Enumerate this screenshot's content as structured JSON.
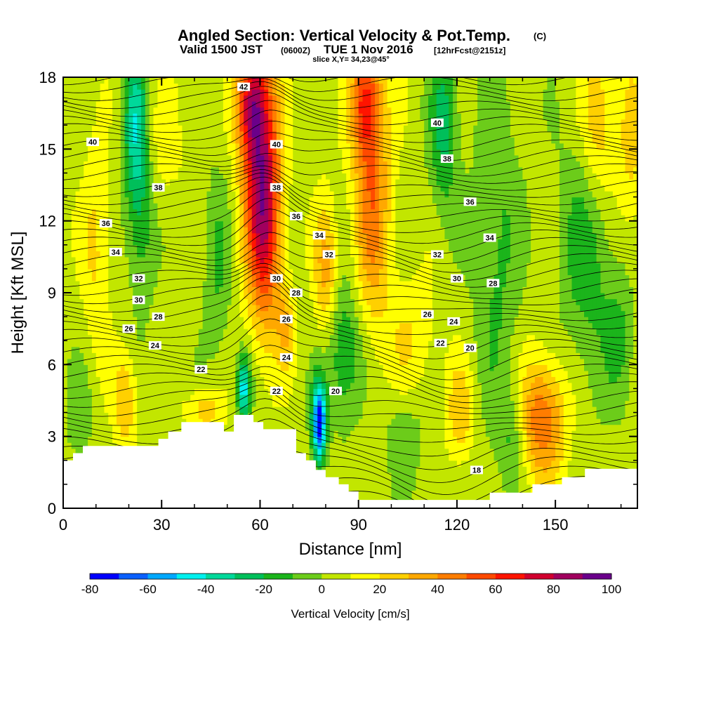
{
  "chart_data": {
    "type": "heatmap",
    "title": "Angled Section: Vertical Velocity & Pot.Temp.",
    "title_mark": "(C)",
    "subtitle": {
      "prefix": "Valid 1500 JST",
      "zulu": "(0600Z)",
      "date": "TUE 1 Nov 2016",
      "forecast": "[12hrFcst@2151z]"
    },
    "slice_label": "slice X,Y= 34,23@45°",
    "xlabel": "Distance [nm]",
    "ylabel": "Height [Kft MSL]",
    "xlim": [
      0,
      175
    ],
    "ylim": [
      0,
      18
    ],
    "x_ticks": [
      0,
      30,
      60,
      90,
      120,
      150
    ],
    "y_ticks": [
      0,
      3,
      6,
      9,
      12,
      15,
      18
    ],
    "colorbar": {
      "label": "Vertical Velocity [cm/s]",
      "bounds": [
        -80,
        -70,
        -60,
        -50,
        -40,
        -30,
        -20,
        -10,
        0,
        10,
        20,
        30,
        40,
        50,
        60,
        70,
        80,
        90,
        100
      ],
      "tick_labels": [
        -80,
        -60,
        -40,
        -20,
        0,
        20,
        40,
        60,
        80,
        100
      ],
      "colors": [
        "#0000ff",
        "#0a60ff",
        "#00a8ff",
        "#00f0ee",
        "#00d89a",
        "#00bf5a",
        "#1bb41b",
        "#6ccc1a",
        "#c2e600",
        "#ffff00",
        "#ffd000",
        "#ffa800",
        "#ff7d00",
        "#ff4a00",
        "#ff1400",
        "#d0002e",
        "#a0005e",
        "#6a008a"
      ]
    },
    "terrain": [
      [
        0,
        2.0
      ],
      [
        3,
        2.0
      ],
      [
        3,
        2.3
      ],
      [
        6,
        2.3
      ],
      [
        6,
        2.6
      ],
      [
        29,
        2.6
      ],
      [
        29,
        2.9
      ],
      [
        32,
        2.9
      ],
      [
        32,
        3.2
      ],
      [
        36,
        3.2
      ],
      [
        36,
        3.6
      ],
      [
        49,
        3.6
      ],
      [
        49,
        3.2
      ],
      [
        52,
        3.2
      ],
      [
        52,
        3.9
      ],
      [
        58,
        3.9
      ],
      [
        58,
        3.6
      ],
      [
        61,
        3.6
      ],
      [
        61,
        3.3
      ],
      [
        71,
        3.3
      ],
      [
        71,
        2.3
      ],
      [
        74,
        2.3
      ],
      [
        74,
        2.0
      ],
      [
        77,
        2.0
      ],
      [
        77,
        1.6
      ],
      [
        80,
        1.6
      ],
      [
        80,
        1.3
      ],
      [
        84,
        1.3
      ],
      [
        84,
        1.0
      ],
      [
        87,
        1.0
      ],
      [
        87,
        0.7
      ],
      [
        90,
        0.7
      ],
      [
        90,
        0.35
      ],
      [
        130,
        0.35
      ],
      [
        130,
        0.65
      ],
      [
        143,
        0.65
      ],
      [
        143,
        1.0
      ],
      [
        152,
        1.0
      ],
      [
        152,
        1.3
      ],
      [
        159,
        1.3
      ],
      [
        159,
        1.65
      ],
      [
        175,
        1.65
      ]
    ],
    "w_features": [
      {
        "x": 60,
        "y": 14.5,
        "sx": 4,
        "sy": 3.5,
        "w": 65
      },
      {
        "x": 62,
        "y": 11,
        "sx": 3.5,
        "sy": 3,
        "w": 35
      },
      {
        "x": 57,
        "y": 17,
        "sx": 3,
        "sy": 1.5,
        "w": 45
      },
      {
        "x": 94,
        "y": 13.5,
        "sx": 4,
        "sy": 4,
        "w": 42
      },
      {
        "x": 92,
        "y": 17,
        "sx": 3,
        "sy": 1.5,
        "w": 40
      },
      {
        "x": 80,
        "y": 10,
        "sx": 2.5,
        "sy": 2,
        "w": 30
      },
      {
        "x": 68,
        "y": 7.5,
        "sx": 2,
        "sy": 1.2,
        "w": 22
      },
      {
        "x": 146,
        "y": 3.7,
        "sx": 5,
        "sy": 1.8,
        "w": 45
      },
      {
        "x": 121,
        "y": 4,
        "sx": 3,
        "sy": 1.5,
        "w": 22
      },
      {
        "x": 19,
        "y": 4.5,
        "sx": 2.5,
        "sy": 1.5,
        "w": 25
      },
      {
        "x": 43,
        "y": 4.1,
        "sx": 4,
        "sy": 0.7,
        "w": 22
      },
      {
        "x": 10,
        "y": 11,
        "sx": 3,
        "sy": 3,
        "w": 18
      },
      {
        "x": 163,
        "y": 16,
        "sx": 4,
        "sy": 2.5,
        "w": 30
      },
      {
        "x": 173,
        "y": 15,
        "sx": 3,
        "sy": 3,
        "w": 18
      },
      {
        "x": 106,
        "y": 7,
        "sx": 6,
        "sy": 2,
        "w": 14
      },
      {
        "x": 30,
        "y": 15,
        "sx": 5,
        "sy": 2,
        "w": 10
      },
      {
        "x": 78,
        "y": 3.6,
        "sx": 1.5,
        "sy": 1.2,
        "w": -80
      },
      {
        "x": 55,
        "y": 5,
        "sx": 1.5,
        "sy": 1,
        "w": -50
      },
      {
        "x": 22,
        "y": 16,
        "sx": 2.5,
        "sy": 2.5,
        "w": -40
      },
      {
        "x": 24,
        "y": 12,
        "sx": 3,
        "sy": 2.5,
        "w": -20
      },
      {
        "x": 86,
        "y": 6.5,
        "sx": 4,
        "sy": 2,
        "w": -28
      },
      {
        "x": 116,
        "y": 16,
        "sx": 3,
        "sy": 2.5,
        "w": -30
      },
      {
        "x": 132,
        "y": 11,
        "sx": 5,
        "sy": 5,
        "w": -18
      },
      {
        "x": 160,
        "y": 11,
        "sx": 6,
        "sy": 4,
        "w": -22
      },
      {
        "x": 47,
        "y": 10,
        "sx": 3,
        "sy": 3,
        "w": -15
      },
      {
        "x": 170,
        "y": 7,
        "sx": 3,
        "sy": 2,
        "w": -15
      },
      {
        "x": 104,
        "y": 3,
        "sx": 4,
        "sy": 1.5,
        "w": -15
      },
      {
        "x": 137,
        "y": 3,
        "sx": 3,
        "sy": 1.5,
        "w": -18
      },
      {
        "x": 5,
        "y": 4,
        "sx": 3,
        "sy": 1.5,
        "w": -12
      }
    ],
    "theta_labels": [
      {
        "text": "42",
        "x": 55,
        "y": 17.6
      },
      {
        "text": "40",
        "x": 9,
        "y": 15.3
      },
      {
        "text": "40",
        "x": 65,
        "y": 15.2
      },
      {
        "text": "40",
        "x": 114,
        "y": 16.1
      },
      {
        "text": "38",
        "x": 29,
        "y": 13.4
      },
      {
        "text": "38",
        "x": 65,
        "y": 13.4
      },
      {
        "text": "38",
        "x": 117,
        "y": 14.6
      },
      {
        "text": "36",
        "x": 13,
        "y": 11.9
      },
      {
        "text": "36",
        "x": 71,
        "y": 12.2
      },
      {
        "text": "36",
        "x": 124,
        "y": 12.8
      },
      {
        "text": "34",
        "x": 16,
        "y": 10.7
      },
      {
        "text": "34",
        "x": 78,
        "y": 11.4
      },
      {
        "text": "34",
        "x": 130,
        "y": 11.3
      },
      {
        "text": "32",
        "x": 23,
        "y": 9.6
      },
      {
        "text": "32",
        "x": 81,
        "y": 10.6
      },
      {
        "text": "32",
        "x": 114,
        "y": 10.6
      },
      {
        "text": "30",
        "x": 23,
        "y": 8.7
      },
      {
        "text": "30",
        "x": 65,
        "y": 9.6
      },
      {
        "text": "30",
        "x": 120,
        "y": 9.6
      },
      {
        "text": "28",
        "x": 29,
        "y": 8.0
      },
      {
        "text": "28",
        "x": 71,
        "y": 9.0
      },
      {
        "text": "28",
        "x": 131,
        "y": 9.4
      },
      {
        "text": "26",
        "x": 20,
        "y": 7.5
      },
      {
        "text": "26",
        "x": 68,
        "y": 7.9
      },
      {
        "text": "26",
        "x": 111,
        "y": 8.1
      },
      {
        "text": "24",
        "x": 28,
        "y": 6.8
      },
      {
        "text": "24",
        "x": 68,
        "y": 6.3
      },
      {
        "text": "24",
        "x": 119,
        "y": 7.8
      },
      {
        "text": "22",
        "x": 42,
        "y": 5.8
      },
      {
        "text": "22",
        "x": 65,
        "y": 4.9
      },
      {
        "text": "22",
        "x": 115,
        "y": 6.9
      },
      {
        "text": "20",
        "x": 83,
        "y": 4.9
      },
      {
        "text": "20",
        "x": 124,
        "y": 6.7
      },
      {
        "text": "18",
        "x": 126,
        "y": 1.6
      }
    ]
  }
}
